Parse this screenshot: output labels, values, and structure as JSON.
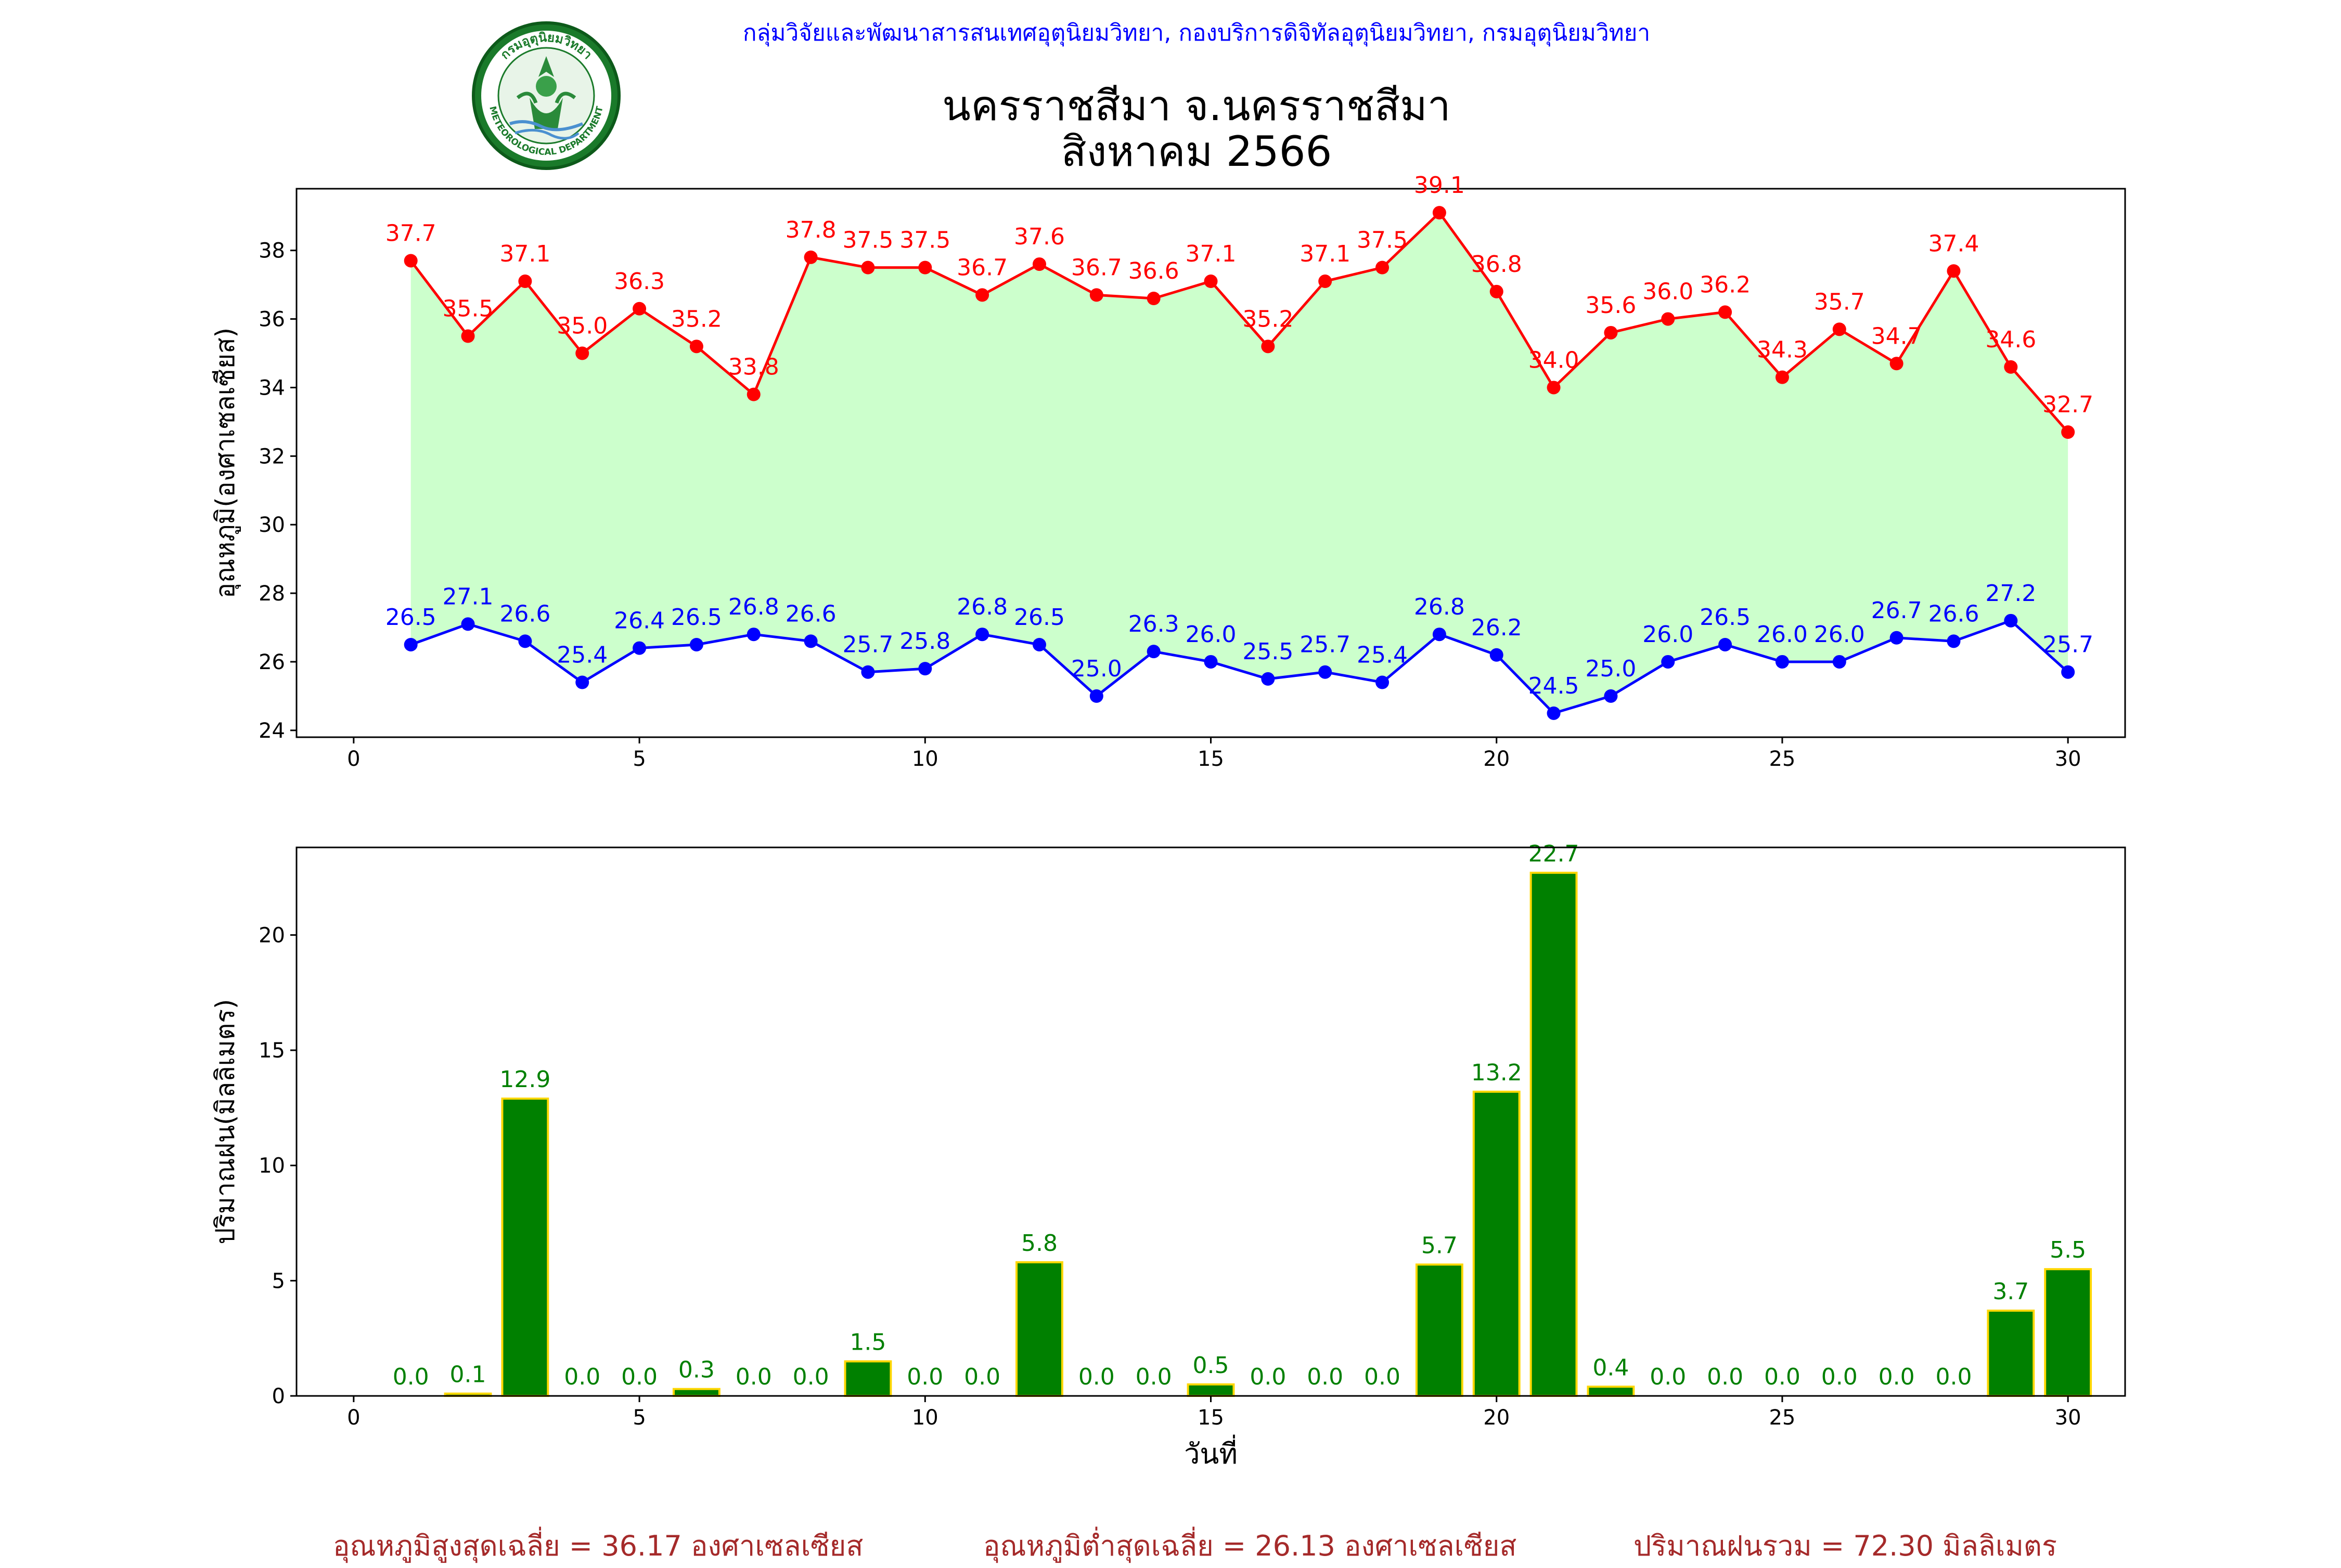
{
  "header": {
    "agency": "กลุ่มวิจัยและพัฒนาสารสนเทศอุตุนิยมวิทยา, กองบริการดิจิทัลอุตุนิยมวิทยา, กรมอุตุนิยมวิทยา",
    "logo_top_text": "กรมอุตุนิยมวิทยา",
    "logo_bottom_text": "METEOROLOGICAL DEPARTMENT"
  },
  "chart_data": [
    {
      "type": "line",
      "title": "นครราชสีมา จ.นครราชสีมา\nสิงหาคม 2566",
      "title_lines": [
        "นครราชสีมา จ.นครราชสีมา",
        "สิงหาคม 2566"
      ],
      "xlabel": "",
      "ylabel": "อุณหภูมิ(องศาเซลเซียส)",
      "xlim": [
        -1,
        31
      ],
      "ylim": [
        23.8,
        39.8
      ],
      "xticks": [
        0,
        5,
        10,
        15,
        20,
        25,
        30
      ],
      "yticks": [
        24,
        26,
        28,
        30,
        32,
        34,
        36,
        38
      ],
      "fill_between": true,
      "grid": false,
      "colors": {
        "max": "#ff0000",
        "min": "#0000ff",
        "fill": "#ccffcc"
      },
      "x": [
        1,
        2,
        3,
        4,
        5,
        6,
        7,
        8,
        9,
        10,
        11,
        12,
        13,
        14,
        15,
        16,
        17,
        18,
        19,
        20,
        21,
        22,
        23,
        24,
        25,
        26,
        27,
        28,
        29,
        30
      ],
      "series": [
        {
          "values": [
            37.7,
            35.5,
            37.1,
            35.0,
            36.3,
            35.2,
            33.8,
            37.8,
            37.5,
            37.5,
            36.7,
            37.6,
            36.7,
            36.6,
            37.1,
            35.2,
            37.1,
            37.5,
            39.1,
            36.8,
            34.0,
            35.6,
            36.0,
            36.2,
            34.3,
            35.7,
            34.7,
            37.4,
            34.6,
            32.7
          ]
        },
        {
          "values": [
            26.5,
            27.1,
            26.6,
            25.4,
            26.4,
            26.5,
            26.8,
            26.6,
            25.7,
            25.8,
            26.8,
            26.5,
            25.0,
            26.3,
            26.0,
            25.5,
            25.7,
            25.4,
            26.8,
            26.2,
            24.5,
            25.0,
            26.0,
            26.5,
            26.0,
            26.0,
            26.7,
            26.6,
            27.2,
            25.7
          ]
        }
      ]
    },
    {
      "type": "bar",
      "title": "",
      "xlabel": "วันที่",
      "ylabel": "ปริมาณฝน(มิลลิเมตร)",
      "xlim": [
        -1,
        31
      ],
      "ylim": [
        0,
        23.8
      ],
      "xticks": [
        0,
        5,
        10,
        15,
        20,
        25,
        30
      ],
      "yticks": [
        0,
        5,
        10,
        15,
        20
      ],
      "grid": false,
      "colors": {
        "bar": "#008000",
        "edge": "#ffd700",
        "label": "#008000"
      },
      "categories": [
        1,
        2,
        3,
        4,
        5,
        6,
        7,
        8,
        9,
        10,
        11,
        12,
        13,
        14,
        15,
        16,
        17,
        18,
        19,
        20,
        21,
        22,
        23,
        24,
        25,
        26,
        27,
        28,
        29,
        30
      ],
      "values": [
        0.0,
        0.1,
        12.9,
        0.0,
        0.0,
        0.3,
        0.0,
        0.0,
        1.5,
        0.0,
        0.0,
        5.8,
        0.0,
        0.0,
        0.5,
        0.0,
        0.0,
        0.0,
        5.7,
        13.2,
        22.7,
        0.4,
        0.0,
        0.0,
        0.0,
        0.0,
        0.0,
        0.0,
        3.7,
        5.5
      ]
    }
  ],
  "summary": {
    "avg_max": "อุณหภูมิสูงสุดเฉลี่ย = 36.17 องศาเซลเซียส",
    "avg_min": "อุณหภูมิต่ำสุดเฉลี่ย = 26.13 องศาเซลเซียส",
    "total_rain": "ปริมาณฝนรวม = 72.30 มิลลิเมตร"
  }
}
